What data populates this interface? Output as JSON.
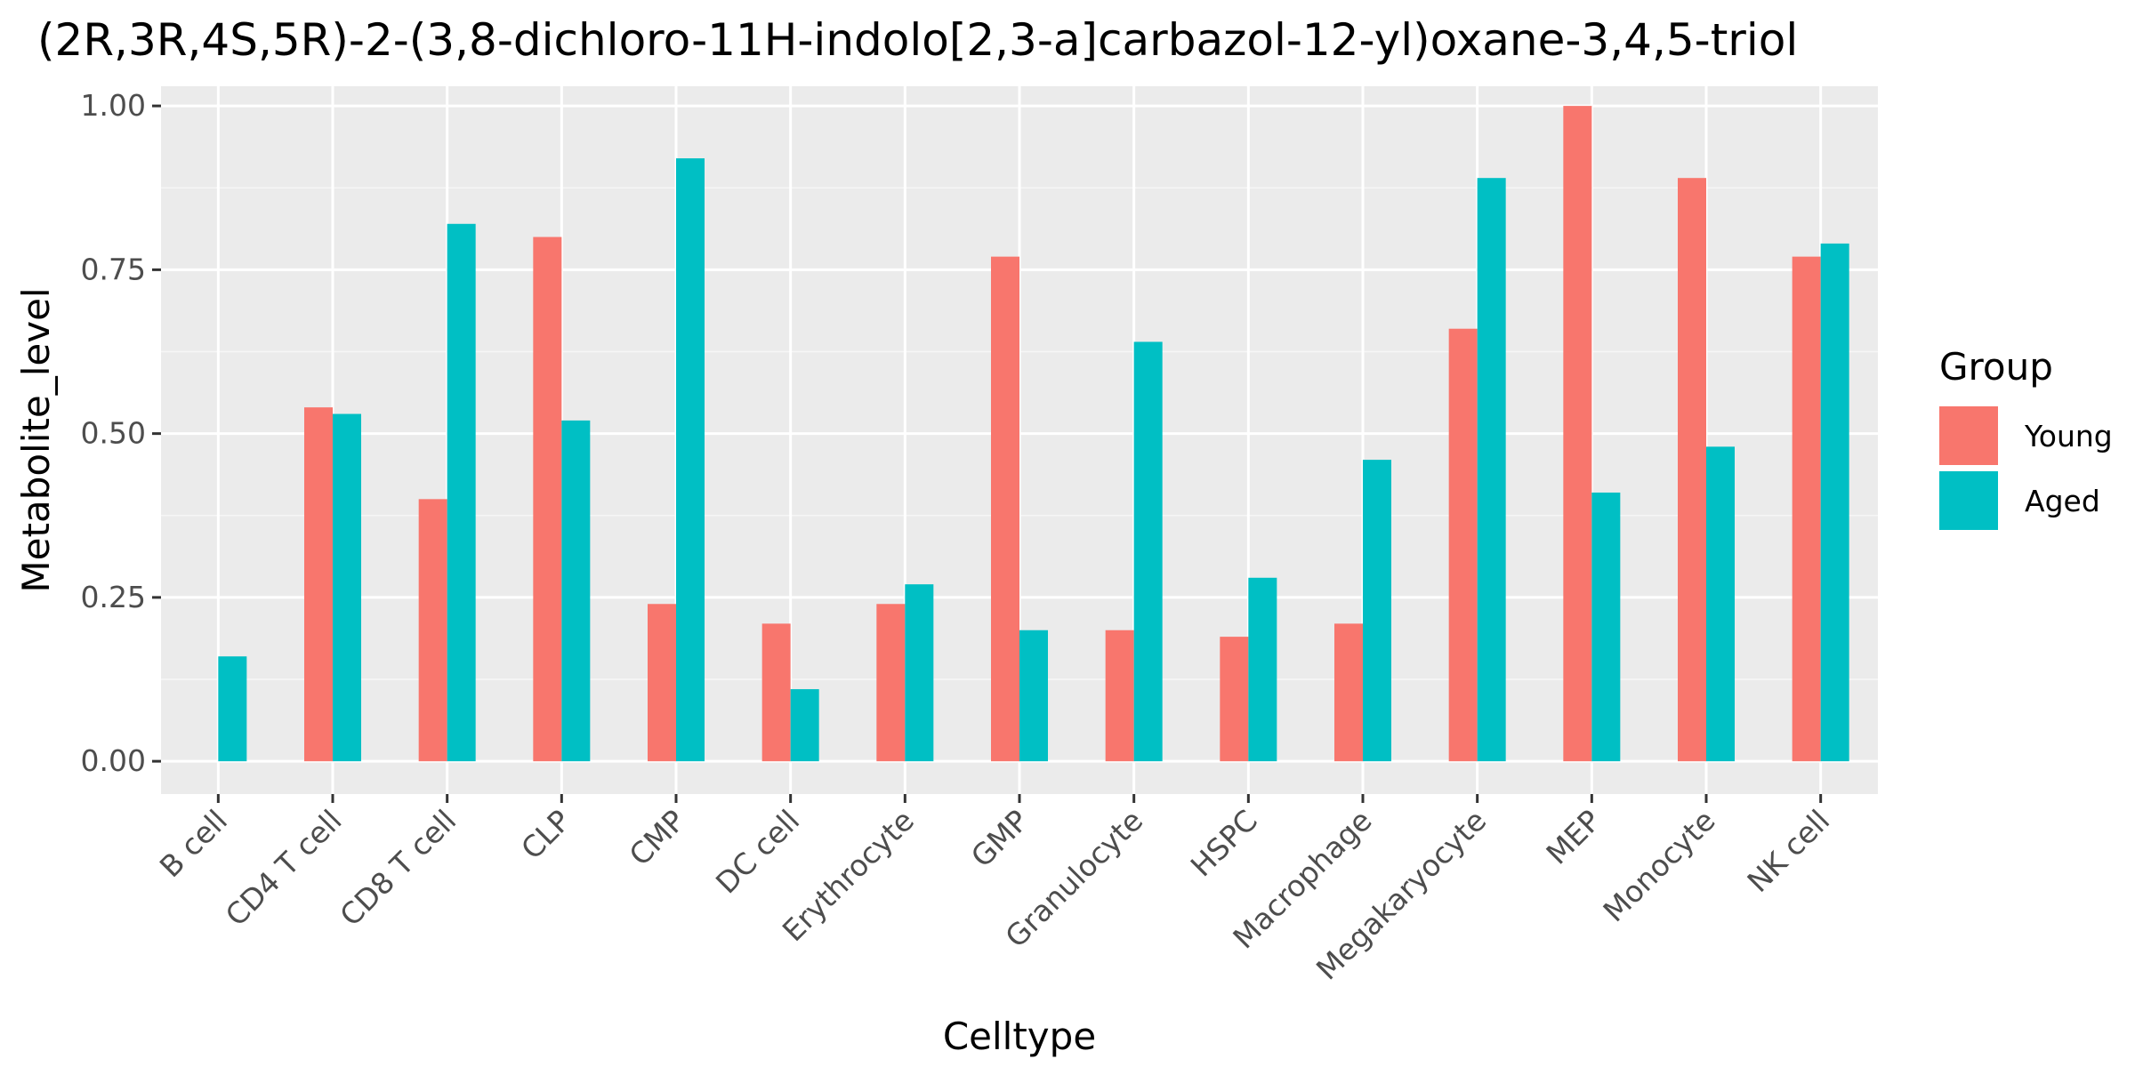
{
  "chart_data": {
    "type": "bar",
    "title": "(2R,3R,4S,5R)-2-(3,8-dichloro-11H-indolo[2,3-a]carbazol-12-yl)oxane-3,4,5-triol",
    "xlabel": "Celltype",
    "ylabel": "Metabolite_level",
    "ylim": [
      -0.05,
      1.03
    ],
    "yticks": [
      0.0,
      0.25,
      0.5,
      0.75,
      1.0
    ],
    "ytick_labels": [
      "0.00",
      "0.25",
      "0.50",
      "0.75",
      "1.00"
    ],
    "grid": true,
    "legend_title": "Group",
    "legend_position": "right",
    "categories": [
      "B cell",
      "CD4 T cell",
      "CD8 T cell",
      "CLP",
      "CMP",
      "DC cell",
      "Erythrocyte",
      "GMP",
      "Granulocyte",
      "HSPC",
      "Macrophage",
      "Megakaryocyte",
      "MEP",
      "Monocyte",
      "NK cell"
    ],
    "series": [
      {
        "name": "Young",
        "color": "#F8766D",
        "values": [
          0.0,
          0.54,
          0.4,
          0.8,
          0.24,
          0.21,
          0.24,
          0.77,
          0.2,
          0.19,
          0.21,
          0.66,
          1.0,
          0.89,
          0.77
        ]
      },
      {
        "name": "Aged",
        "color": "#00BFC4",
        "values": [
          0.16,
          0.53,
          0.82,
          0.52,
          0.92,
          0.11,
          0.27,
          0.2,
          0.64,
          0.28,
          0.46,
          0.89,
          0.41,
          0.48,
          0.79
        ]
      }
    ]
  },
  "colors": {
    "panel_background": "#EBEBEB",
    "grid_major": "#FFFFFF",
    "grid_minor": "#F5F5F5",
    "tick_text": "#4D4D4D"
  }
}
